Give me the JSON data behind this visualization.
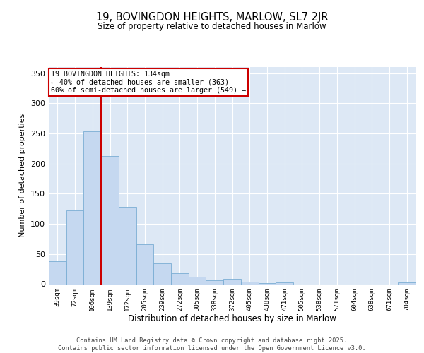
{
  "title1": "19, BOVINGDON HEIGHTS, MARLOW, SL7 2JR",
  "title2": "Size of property relative to detached houses in Marlow",
  "xlabel": "Distribution of detached houses by size in Marlow",
  "ylabel": "Number of detached properties",
  "bar_labels": [
    "39sqm",
    "72sqm",
    "106sqm",
    "139sqm",
    "172sqm",
    "205sqm",
    "239sqm",
    "272sqm",
    "305sqm",
    "338sqm",
    "372sqm",
    "405sqm",
    "438sqm",
    "471sqm",
    "505sqm",
    "538sqm",
    "571sqm",
    "604sqm",
    "638sqm",
    "671sqm",
    "704sqm"
  ],
  "all_bar_heights": [
    38,
    122,
    253,
    213,
    128,
    66,
    35,
    18,
    12,
    7,
    9,
    4,
    2,
    3,
    0,
    0,
    0,
    0,
    0,
    0,
    3
  ],
  "ylim_max": 360,
  "yticks": [
    0,
    50,
    100,
    150,
    200,
    250,
    300,
    350
  ],
  "bar_color": "#c5d8f0",
  "bar_edge_color": "#7aadd4",
  "vline_x": 2.5,
  "vline_color": "#cc0000",
  "annotation_text": "19 BOVINGDON HEIGHTS: 134sqm\n← 40% of detached houses are smaller (363)\n60% of semi-detached houses are larger (549) →",
  "annotation_box_edge_color": "#cc0000",
  "bg_color": "#dde8f5",
  "grid_color": "#ffffff",
  "footer": "Contains HM Land Registry data © Crown copyright and database right 2025.\nContains public sector information licensed under the Open Government Licence v3.0."
}
